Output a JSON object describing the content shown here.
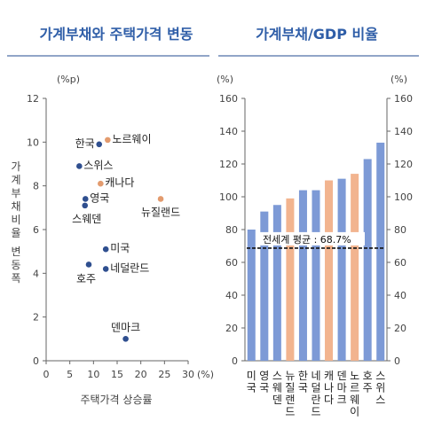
{
  "colors": {
    "title": "#2f5ea8",
    "rule": "#4f6fa8",
    "navy_point": "#2f4f8f",
    "orange_point": "#e39b6e",
    "blue_bar": "#7d9ad6",
    "orange_bar": "#f2b48f",
    "axis_text": "#444444"
  },
  "chart_data": [
    {
      "type": "scatter",
      "title": "가계부채와 주택가격 변동",
      "xlabel": "주택가격 상승률",
      "ylabel": "가계부채비율 변동폭",
      "x_unit": "(%)",
      "y_unit": "(%p)",
      "xlim": [
        0,
        30
      ],
      "ylim": [
        0,
        12
      ],
      "x_ticks": [
        0,
        5,
        10,
        15,
        20,
        25,
        30
      ],
      "y_ticks": [
        0,
        2,
        4,
        6,
        8,
        10,
        12
      ],
      "grid": false,
      "points": [
        {
          "label": "한국",
          "x": 11.2,
          "y": 9.9,
          "color": "navy"
        },
        {
          "label": "노르웨이",
          "x": 13.0,
          "y": 10.1,
          "color": "orange"
        },
        {
          "label": "스위스",
          "x": 7.0,
          "y": 8.9,
          "color": "navy"
        },
        {
          "label": "캐나다",
          "x": 11.5,
          "y": 8.1,
          "color": "orange"
        },
        {
          "label": "영국",
          "x": 8.3,
          "y": 7.4,
          "color": "navy"
        },
        {
          "label": "스웨덴",
          "x": 8.2,
          "y": 7.1,
          "color": "navy"
        },
        {
          "label": "뉴질랜드",
          "x": 24.2,
          "y": 7.4,
          "color": "orange"
        },
        {
          "label": "미국",
          "x": 12.6,
          "y": 5.1,
          "color": "navy"
        },
        {
          "label": "호주",
          "x": 9.0,
          "y": 4.4,
          "color": "navy"
        },
        {
          "label": "네덜란드",
          "x": 12.6,
          "y": 4.2,
          "color": "navy"
        },
        {
          "label": "덴마크",
          "x": 16.8,
          "y": 1.0,
          "color": "navy"
        }
      ]
    },
    {
      "type": "bar",
      "title": "가계부채/GDP 비율",
      "y_unit_left": "(%)",
      "y_unit_right": "(%)",
      "ylim": [
        0,
        160
      ],
      "y_ticks": [
        0,
        20,
        40,
        60,
        80,
        100,
        120,
        140,
        160
      ],
      "grid": false,
      "categories": [
        "미국",
        "영국",
        "스웨덴",
        "뉴질랜드",
        "한국",
        "네덜란드",
        "캐나다",
        "덴마크",
        "노르웨이",
        "호주",
        "스위스"
      ],
      "values": [
        80,
        91,
        95,
        99,
        104,
        104,
        110,
        111,
        114,
        123,
        133
      ],
      "bar_colors": [
        "blue",
        "blue",
        "blue",
        "orange",
        "blue",
        "blue",
        "orange",
        "blue",
        "orange",
        "blue",
        "blue"
      ],
      "reference_line": {
        "value": 68.7,
        "label": "전세계 평균 : 68.7%"
      }
    }
  ]
}
